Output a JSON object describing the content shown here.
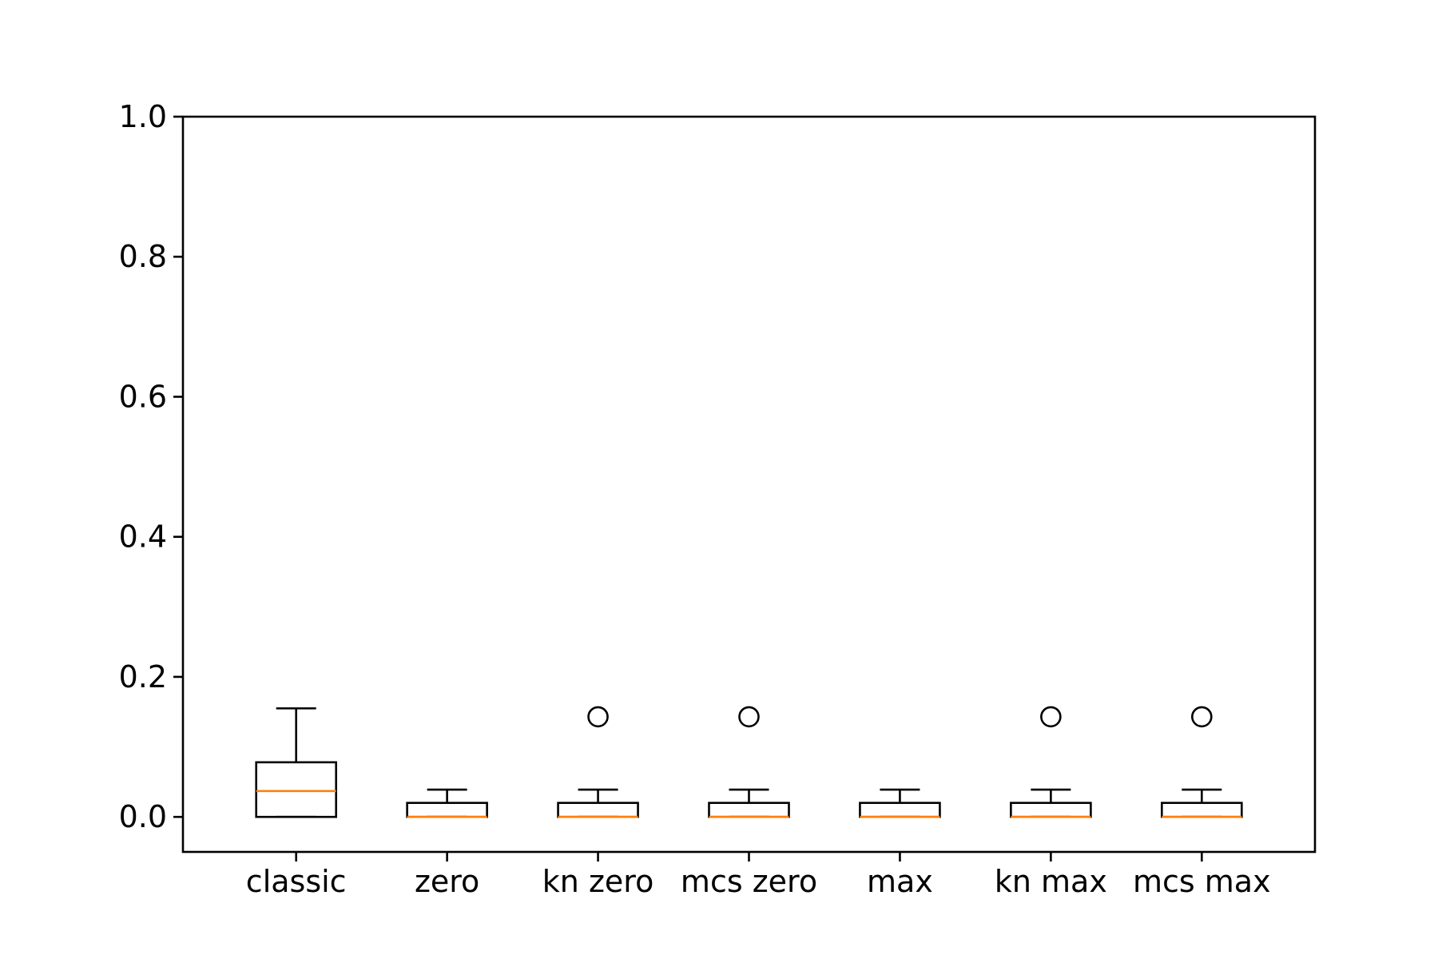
{
  "chart_data": {
    "type": "boxplot",
    "title": "",
    "xlabel": "",
    "ylabel": "",
    "ylim": [
      -0.05,
      1.0
    ],
    "yticks": [
      0.0,
      0.2,
      0.4,
      0.6,
      0.8,
      1.0
    ],
    "ytick_labels": [
      "0.0",
      "0.2",
      "0.4",
      "0.6",
      "0.8",
      "1.0"
    ],
    "grid": false,
    "colors": {
      "box": "#000000",
      "median": "#ff7f0e",
      "flier": "#000000"
    },
    "categories": [
      "classic",
      "zero",
      "kn zero",
      "mcs zero",
      "max",
      "kn max",
      "mcs max"
    ],
    "boxes": [
      {
        "whisker_low": 0.0,
        "q1": 0.0,
        "median": 0.037,
        "q3": 0.078,
        "whisker_high": 0.155,
        "fliers": []
      },
      {
        "whisker_low": 0.0,
        "q1": 0.0,
        "median": 0.0,
        "q3": 0.02,
        "whisker_high": 0.039,
        "fliers": []
      },
      {
        "whisker_low": 0.0,
        "q1": 0.0,
        "median": 0.0,
        "q3": 0.02,
        "whisker_high": 0.039,
        "fliers": [
          0.143
        ]
      },
      {
        "whisker_low": 0.0,
        "q1": 0.0,
        "median": 0.0,
        "q3": 0.02,
        "whisker_high": 0.039,
        "fliers": [
          0.143
        ]
      },
      {
        "whisker_low": 0.0,
        "q1": 0.0,
        "median": 0.0,
        "q3": 0.02,
        "whisker_high": 0.039,
        "fliers": []
      },
      {
        "whisker_low": 0.0,
        "q1": 0.0,
        "median": 0.0,
        "q3": 0.02,
        "whisker_high": 0.039,
        "fliers": [
          0.143
        ]
      },
      {
        "whisker_low": 0.0,
        "q1": 0.0,
        "median": 0.0,
        "q3": 0.02,
        "whisker_high": 0.039,
        "fliers": [
          0.143
        ]
      }
    ]
  }
}
